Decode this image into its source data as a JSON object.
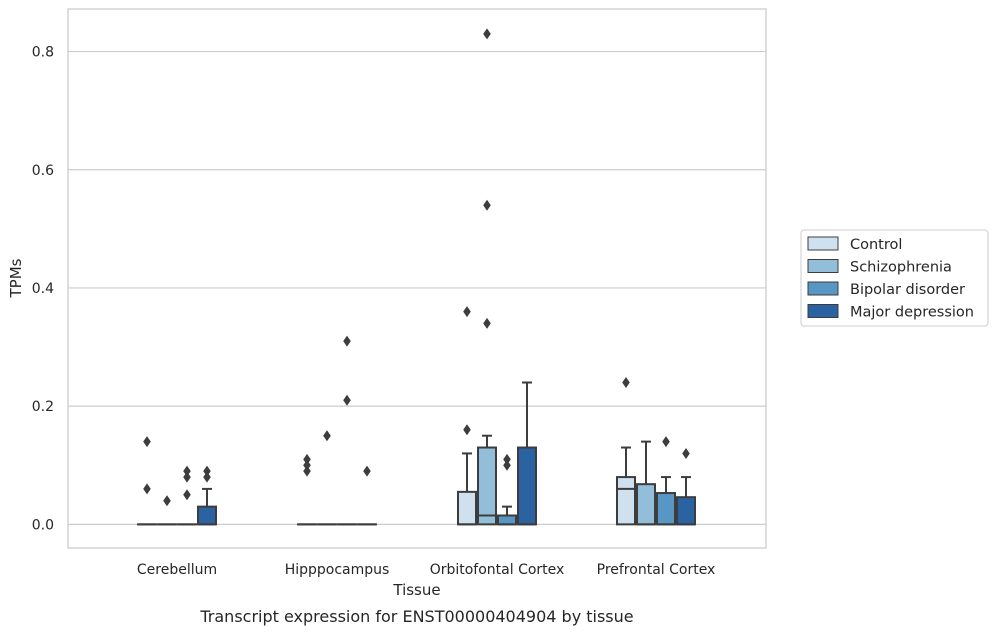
{
  "chart_data": {
    "type": "box",
    "title": "",
    "caption": "Transcript expression for ENST00000404904 by tissue",
    "xlabel": "Tissue",
    "ylabel": "TPMs",
    "ylim": [
      -0.04,
      0.872
    ],
    "yticks": [
      0.0,
      0.2,
      0.4,
      0.6,
      0.8
    ],
    "ytick_labels": [
      "0.0",
      "0.2",
      "0.4",
      "0.6",
      "0.8"
    ],
    "categories": [
      "Cerebellum",
      "Hipppocampus",
      "Orbitofontal Cortex",
      "Prefrontal Cortex"
    ],
    "grid": "horizontal",
    "legend_position": "right",
    "series": [
      {
        "name": "Control",
        "color": "#cfe0ef",
        "boxes": [
          {
            "q1": 0,
            "median": 0,
            "q3": 0,
            "whisker_low": 0,
            "whisker_high": 0,
            "outliers": [
              0.14,
              0.06
            ]
          },
          {
            "q1": 0,
            "median": 0,
            "q3": 0,
            "whisker_low": 0,
            "whisker_high": 0,
            "outliers": [
              0.11,
              0.1,
              0.09
            ]
          },
          {
            "q1": 0,
            "median": 0,
            "q3": 0.055,
            "whisker_low": 0,
            "whisker_high": 0.12,
            "outliers": [
              0.36,
              0.16
            ]
          },
          {
            "q1": 0,
            "median": 0.06,
            "q3": 0.08,
            "whisker_low": 0,
            "whisker_high": 0.13,
            "outliers": [
              0.24
            ]
          }
        ]
      },
      {
        "name": "Schizophrenia",
        "color": "#93bed9",
        "boxes": [
          {
            "q1": 0,
            "median": 0,
            "q3": 0,
            "whisker_low": 0,
            "whisker_high": 0,
            "outliers": [
              0.04
            ]
          },
          {
            "q1": 0,
            "median": 0,
            "q3": 0,
            "whisker_low": 0,
            "whisker_high": 0,
            "outliers": [
              0.15
            ]
          },
          {
            "q1": 0,
            "median": 0.015,
            "q3": 0.13,
            "whisker_low": 0,
            "whisker_high": 0.15,
            "outliers": [
              0.83,
              0.54,
              0.34
            ]
          },
          {
            "q1": 0,
            "median": 0,
            "q3": 0.068,
            "whisker_low": 0,
            "whisker_high": 0.14,
            "outliers": []
          }
        ]
      },
      {
        "name": "Bipolar disorder",
        "color": "#5897c4",
        "boxes": [
          {
            "q1": 0,
            "median": 0,
            "q3": 0,
            "whisker_low": 0,
            "whisker_high": 0,
            "outliers": [
              0.09,
              0.08,
              0.05
            ]
          },
          {
            "q1": 0,
            "median": 0,
            "q3": 0,
            "whisker_low": 0,
            "whisker_high": 0,
            "outliers": [
              0.31,
              0.21
            ]
          },
          {
            "q1": 0,
            "median": 0,
            "q3": 0.015,
            "whisker_low": 0,
            "whisker_high": 0.03,
            "outliers": [
              0.11,
              0.1
            ]
          },
          {
            "q1": 0,
            "median": 0,
            "q3": 0.053,
            "whisker_low": 0,
            "whisker_high": 0.08,
            "outliers": [
              0.14
            ]
          }
        ]
      },
      {
        "name": "Major depression",
        "color": "#2a62a2",
        "boxes": [
          {
            "q1": 0,
            "median": 0,
            "q3": 0.03,
            "whisker_low": 0,
            "whisker_high": 0.06,
            "outliers": [
              0.09,
              0.08
            ]
          },
          {
            "q1": 0,
            "median": 0,
            "q3": 0,
            "whisker_low": 0,
            "whisker_high": 0,
            "outliers": [
              0.09
            ]
          },
          {
            "q1": 0,
            "median": 0,
            "q3": 0.13,
            "whisker_low": 0,
            "whisker_high": 0.24,
            "outliers": []
          },
          {
            "q1": 0,
            "median": 0,
            "q3": 0.046,
            "whisker_low": 0,
            "whisker_high": 0.08,
            "outliers": [
              0.12
            ]
          }
        ]
      }
    ]
  }
}
